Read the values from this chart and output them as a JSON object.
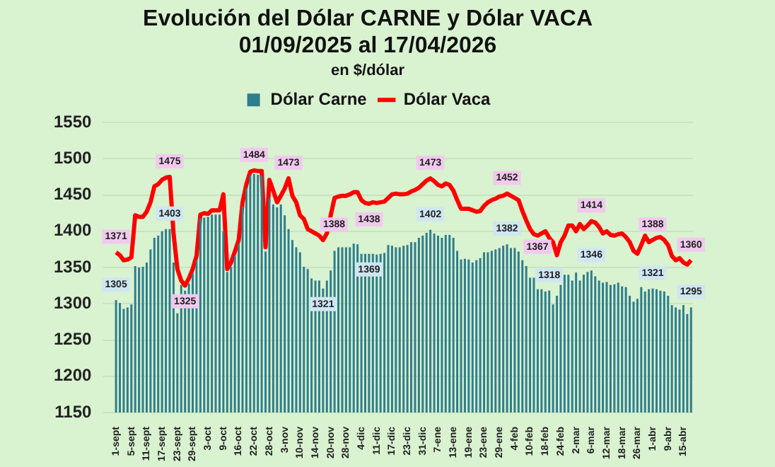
{
  "chart_data": {
    "type": "bar",
    "title": "Evolución del Dólar CARNE y Dólar VACA\n01/09/2025 al 17/04/2026",
    "subtitle": "en $/dólar",
    "categories": [
      "1-sept",
      null,
      null,
      null,
      "5-sept",
      null,
      null,
      null,
      "11-sept",
      null,
      null,
      null,
      "17-sept",
      null,
      null,
      null,
      "23-sept",
      null,
      null,
      null,
      "29-sept",
      null,
      null,
      null,
      "3-oct",
      null,
      null,
      null,
      "9-oct",
      null,
      null,
      null,
      "16-oct",
      null,
      null,
      null,
      "22-oct",
      null,
      null,
      null,
      "28-oct",
      null,
      null,
      null,
      "3-nov",
      null,
      null,
      null,
      "10-nov",
      null,
      null,
      null,
      "14-nov",
      null,
      null,
      null,
      "20-nov",
      null,
      null,
      null,
      "28-nov",
      null,
      null,
      null,
      "4-dic",
      null,
      null,
      null,
      "11-dic",
      null,
      null,
      null,
      "17-dic",
      null,
      null,
      null,
      "23-dic",
      null,
      null,
      null,
      "31-dic",
      null,
      null,
      null,
      "7-ene",
      null,
      null,
      null,
      "13-ene",
      null,
      null,
      null,
      "19-ene",
      null,
      null,
      null,
      "23-ene",
      null,
      null,
      null,
      "29-ene",
      null,
      null,
      null,
      "4-feb",
      null,
      null,
      null,
      "10-feb",
      null,
      null,
      null,
      "18-feb",
      null,
      null,
      null,
      "24-feb",
      null,
      null,
      null,
      "2-mar",
      null,
      null,
      null,
      "6-mar",
      null,
      null,
      null,
      "12-mar",
      null,
      null,
      null,
      "18-mar",
      null,
      null,
      null,
      "26-mar",
      null,
      null,
      null,
      "1-abr",
      null,
      null,
      null,
      "9-abr",
      null,
      null,
      null,
      "15-abr",
      null,
      null
    ],
    "series": [
      {
        "name": "Dólar Carne",
        "color": "#2e7d8c",
        "values": [
          1305,
          1301,
          1293,
          1295,
          1299,
          1352,
          1350,
          1351,
          1357,
          1375,
          1391,
          1394,
          1400,
          1403,
          1403,
          1357,
          1287,
          1326,
          1318,
          1328,
          1342,
          1360,
          1418,
          1419,
          1420,
          1423,
          1423,
          1423,
          1400,
          1344,
          1351,
          1366,
          1382,
          1434,
          1459,
          1477,
          1479,
          1478,
          1477,
          1372,
          1446,
          1437,
          1433,
          1437,
          1422,
          1403,
          1388,
          1378,
          1371,
          1351,
          1348,
          1335,
          1332,
          1332,
          1321,
          1332,
          1346,
          1373,
          1378,
          1378,
          1378,
          1378,
          1383,
          1382,
          1369,
          1369,
          1369,
          1369,
          1368,
          1369,
          1370,
          1381,
          1380,
          1378,
          1378,
          1380,
          1381,
          1385,
          1385,
          1391,
          1394,
          1398,
          1402,
          1397,
          1394,
          1391,
          1395,
          1395,
          1391,
          1373,
          1361,
          1362,
          1361,
          1357,
          1360,
          1363,
          1371,
          1371,
          1373,
          1375,
          1377,
          1380,
          1382,
          1377,
          1377,
          1372,
          1360,
          1352,
          1336,
          1336,
          1320,
          1320,
          1317,
          1318,
          1299,
          1311,
          1326,
          1340,
          1340,
          1332,
          1343,
          1332,
          1340,
          1344,
          1346,
          1338,
          1332,
          1329,
          1330,
          1326,
          1327,
          1329,
          1324,
          1323,
          1311,
          1303,
          1307,
          1323,
          1317,
          1320,
          1321,
          1320,
          1318,
          1317,
          1311,
          1298,
          1295,
          1292,
          1298,
          1286,
          1295
        ],
        "value_labels": [
          "1305",
          null,
          null,
          null,
          null,
          null,
          null,
          null,
          null,
          null,
          null,
          null,
          null,
          null,
          "1403",
          null,
          null,
          null,
          null,
          null,
          null,
          null,
          null,
          null,
          null,
          null,
          null,
          null,
          null,
          null,
          null,
          null,
          null,
          null,
          null,
          null,
          null,
          null,
          null,
          null,
          null,
          null,
          null,
          null,
          null,
          null,
          null,
          null,
          null,
          null,
          null,
          null,
          null,
          null,
          "1321",
          null,
          null,
          null,
          null,
          null,
          null,
          null,
          null,
          null,
          null,
          null,
          "1369",
          null,
          null,
          null,
          null,
          null,
          null,
          null,
          null,
          null,
          null,
          null,
          null,
          null,
          null,
          null,
          "1402",
          null,
          null,
          null,
          null,
          null,
          null,
          null,
          null,
          null,
          null,
          null,
          null,
          null,
          null,
          null,
          null,
          null,
          null,
          null,
          "1382",
          null,
          null,
          null,
          null,
          null,
          null,
          null,
          null,
          null,
          null,
          "1318",
          null,
          null,
          null,
          null,
          null,
          null,
          null,
          null,
          null,
          null,
          "1346",
          null,
          null,
          null,
          null,
          null,
          null,
          null,
          null,
          null,
          null,
          null,
          null,
          null,
          null,
          null,
          "1321",
          null,
          null,
          null,
          null,
          null,
          null,
          null,
          null,
          null,
          "1295"
        ]
      },
      {
        "name": "Dólar Vaca",
        "type": "line",
        "color": "#ff0000",
        "marker": "none",
        "values": [
          1371,
          1367,
          1360,
          1361,
          1364,
          1422,
          1420,
          1420,
          1427,
          1440,
          1462,
          1465,
          1471,
          1474,
          1475,
          1397,
          1348,
          1332,
          1325,
          1335,
          1348,
          1366,
          1423,
          1425,
          1424,
          1429,
          1429,
          1429,
          1451,
          1348,
          1357,
          1372,
          1388,
          1440,
          1465,
          1482,
          1484,
          1483,
          1483,
          1378,
          1471,
          1456,
          1440,
          1449,
          1459,
          1473,
          1449,
          1440,
          1422,
          1417,
          1403,
          1400,
          1397,
          1394,
          1388,
          1397,
          1422,
          1446,
          1448,
          1449,
          1449,
          1451,
          1454,
          1454,
          1443,
          1439,
          1438,
          1440,
          1439,
          1440,
          1441,
          1446,
          1451,
          1452,
          1451,
          1451,
          1452,
          1455,
          1457,
          1460,
          1465,
          1470,
          1473,
          1469,
          1464,
          1462,
          1466,
          1464,
          1456,
          1443,
          1431,
          1431,
          1431,
          1429,
          1427,
          1428,
          1435,
          1440,
          1443,
          1445,
          1448,
          1449,
          1452,
          1449,
          1446,
          1443,
          1428,
          1415,
          1403,
          1396,
          1394,
          1397,
          1400,
          1391,
          1385,
          1367,
          1385,
          1394,
          1408,
          1408,
          1400,
          1410,
          1403,
          1408,
          1414,
          1412,
          1406,
          1397,
          1400,
          1395,
          1394,
          1396,
          1397,
          1392,
          1385,
          1373,
          1369,
          1381,
          1394,
          1385,
          1388,
          1391,
          1392,
          1388,
          1381,
          1366,
          1360,
          1363,
          1357,
          1354,
          1360
        ],
        "value_labels": [
          "1371",
          null,
          null,
          null,
          null,
          null,
          null,
          null,
          null,
          null,
          null,
          null,
          null,
          null,
          "1475",
          null,
          null,
          null,
          "1325",
          null,
          null,
          null,
          null,
          null,
          null,
          null,
          null,
          null,
          null,
          null,
          null,
          null,
          null,
          null,
          null,
          null,
          "1484",
          null,
          null,
          null,
          null,
          null,
          null,
          null,
          null,
          "1473",
          null,
          null,
          null,
          null,
          null,
          null,
          null,
          null,
          "1388",
          null,
          null,
          null,
          null,
          null,
          null,
          null,
          null,
          null,
          null,
          null,
          "1438",
          null,
          null,
          null,
          null,
          null,
          null,
          null,
          null,
          null,
          null,
          null,
          null,
          null,
          null,
          null,
          "1473",
          null,
          null,
          null,
          null,
          null,
          null,
          null,
          null,
          null,
          null,
          null,
          null,
          null,
          null,
          null,
          null,
          null,
          null,
          null,
          "1452",
          null,
          null,
          null,
          null,
          null,
          null,
          null,
          null,
          null,
          null,
          null,
          null,
          "1367",
          null,
          null,
          null,
          null,
          null,
          null,
          null,
          null,
          "1414",
          null,
          null,
          null,
          null,
          null,
          null,
          null,
          null,
          null,
          null,
          null,
          null,
          null,
          null,
          null,
          "1388",
          null,
          null,
          null,
          null,
          null,
          null,
          null,
          null,
          null,
          "1360"
        ]
      }
    ],
    "ylim": [
      1150,
      1550
    ],
    "yticks": [
      1150,
      1200,
      1250,
      1300,
      1350,
      1400,
      1450,
      1500,
      1550
    ],
    "grid": "y",
    "legend": "top"
  }
}
